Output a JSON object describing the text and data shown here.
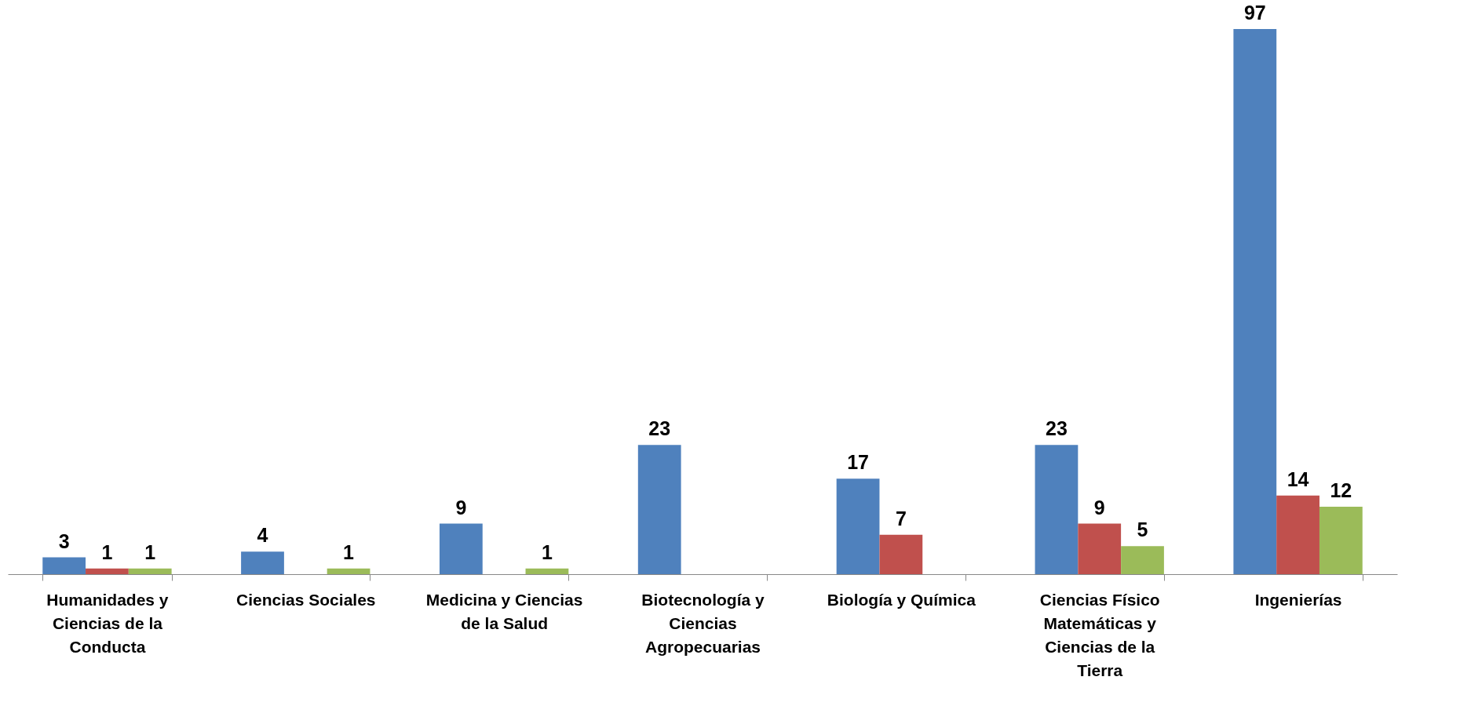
{
  "chart_data": {
    "type": "bar",
    "categories": [
      "Humanidades y Ciencias de la Conducta",
      "Ciencias Sociales",
      "Medicina y Ciencias de la Salud",
      "Biotecnología y Ciencias Agropecuarias",
      "Biología y Química",
      "Ciencias Físico Matemáticas y Ciencias de la Tierra",
      "Ingenierías"
    ],
    "series": [
      {
        "color": "#4f81bd",
        "values": [
          3,
          4,
          9,
          23,
          17,
          23,
          97
        ]
      },
      {
        "color": "#c0504d",
        "values": [
          1,
          null,
          null,
          null,
          7,
          9,
          14
        ]
      },
      {
        "color": "#9bbb59",
        "values": [
          1,
          1,
          1,
          null,
          null,
          5,
          12
        ]
      }
    ],
    "data_labels": true,
    "grid": false,
    "legend": false
  }
}
